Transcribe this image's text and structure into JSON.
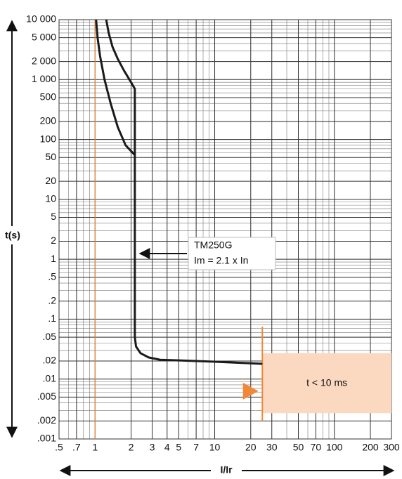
{
  "chart_data": {
    "type": "line",
    "log_x": true,
    "log_y": true,
    "grid": true,
    "y_label": "t(s)",
    "x_label": "I/Ir",
    "xlim": [
      0.5,
      300
    ],
    "ylim": [
      0.001,
      10000
    ],
    "xticks": [
      {
        "value": 0.5,
        "label": ".5"
      },
      {
        "value": 0.7,
        "label": ".7"
      },
      1,
      2,
      3,
      4,
      5,
      7,
      10,
      20,
      30,
      50,
      70,
      100,
      200,
      300
    ],
    "yticks": [
      {
        "value": 10000,
        "label": "10 000"
      },
      {
        "value": 5000,
        "label": "5 000"
      },
      {
        "value": 2000,
        "label": "2 000"
      },
      {
        "value": 1000,
        "label": "1 000"
      },
      500,
      200,
      100,
      50,
      20,
      10,
      5,
      2,
      1,
      {
        "value": 0.5,
        "label": ".5"
      },
      {
        "value": 0.2,
        "label": ".2"
      },
      {
        "value": 0.1,
        "label": ".1"
      },
      {
        "value": 0.05,
        "label": ".05"
      },
      {
        "value": 0.02,
        "label": ".02"
      },
      {
        "value": 0.01,
        "label": ".01"
      },
      {
        "value": 0.005,
        "label": ".005"
      },
      {
        "value": 0.002,
        "label": ".002"
      },
      {
        "value": 0.001,
        "label": ".001"
      }
    ],
    "series": [
      {
        "color": "#1a1a1a",
        "x": [
          1.24,
          1.3,
          1.4,
          1.55,
          1.75,
          2.0,
          2.15,
          2.15,
          2.2,
          2.4,
          2.8,
          3.5,
          5,
          10,
          25
        ],
        "values": [
          10000,
          6000,
          3500,
          2200,
          1400,
          900,
          700,
          0.05,
          0.035,
          0.027,
          0.023,
          0.021,
          0.0205,
          0.0195,
          0.018
        ]
      },
      {
        "color": "#1a1a1a",
        "x": [
          1.02,
          1.05,
          1.1,
          1.2,
          1.35,
          1.55,
          1.8,
          2.15
        ],
        "values": [
          10000,
          5000,
          2500,
          1000,
          400,
          160,
          80,
          55
        ]
      }
    ],
    "reference_line": {
      "x": 1,
      "color": "#f0883a"
    },
    "cutoff_line": {
      "x": 25,
      "ylim": [
        0.002,
        0.075
      ],
      "color": "#f0883a"
    },
    "zone": {
      "xlim": [
        25,
        300
      ],
      "ylim": [
        0.0027,
        0.027
      ],
      "color": "#fbd8c0",
      "label": "t < 10 ms"
    },
    "zone_marker": {
      "x": 20,
      "y": 0.0063,
      "color": "#f0883a"
    },
    "callout": {
      "lines": [
        "TM250G",
        "Im = 2.1 x In"
      ]
    }
  }
}
